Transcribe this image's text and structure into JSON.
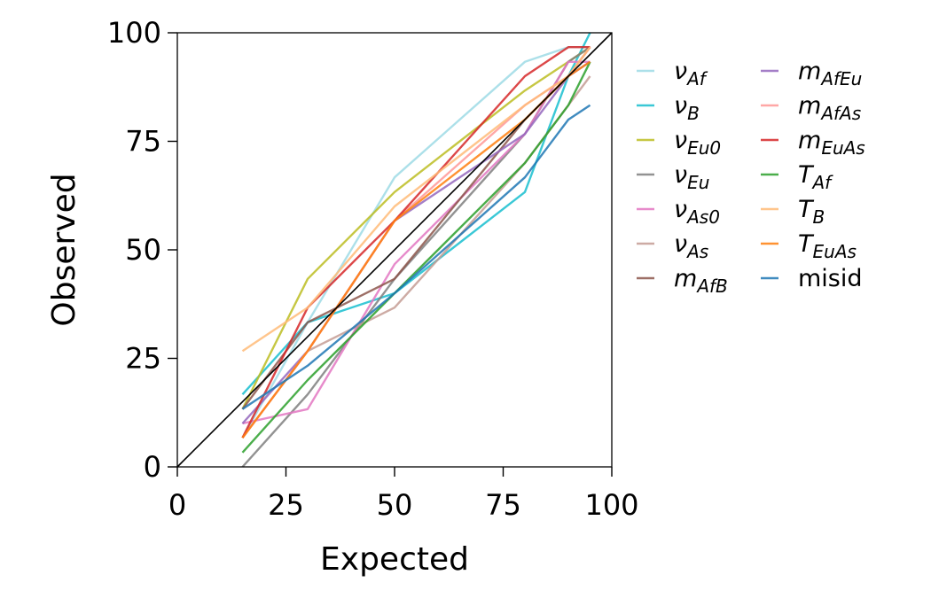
{
  "chart_data": {
    "type": "line",
    "title": "",
    "xlabel": "Expected",
    "ylabel": "Observed",
    "xlim": [
      0,
      100
    ],
    "ylim": [
      0,
      100
    ],
    "x_ticks": [
      "0",
      "25",
      "50",
      "75",
      "100"
    ],
    "y_ticks": [
      "0",
      "25",
      "50",
      "75",
      "100"
    ],
    "grid": false,
    "legend": "outside-right, 2 columns",
    "reference_line": {
      "x": [
        0,
        100
      ],
      "y": [
        0,
        100
      ],
      "color": "#000000"
    },
    "x": [
      15,
      30,
      50,
      80,
      90,
      95
    ],
    "series": [
      {
        "sym": "ν",
        "sub": "Af",
        "color": "#9edae5",
        "values": [
          6.7,
          33.3,
          66.7,
          93.3,
          96.7,
          96.7
        ]
      },
      {
        "sym": "ν",
        "sub": "B",
        "color": "#17becf",
        "values": [
          16.7,
          33.3,
          40.0,
          63.3,
          90.0,
          100.0
        ]
      },
      {
        "sym": "ν",
        "sub": "Eu0",
        "color": "#bcbd22",
        "values": [
          13.3,
          43.3,
          63.3,
          86.7,
          93.3,
          96.7
        ]
      },
      {
        "sym": "ν",
        "sub": "Eu",
        "color": "#7f7f7f",
        "values": [
          0.0,
          16.7,
          43.3,
          76.7,
          93.3,
          96.7
        ]
      },
      {
        "sym": "ν",
        "sub": "As0",
        "color": "#e377c2",
        "values": [
          10.0,
          13.3,
          46.7,
          76.7,
          93.3,
          93.3
        ]
      },
      {
        "sym": "ν",
        "sub": "As",
        "color": "#c49c94",
        "values": [
          6.7,
          26.7,
          36.7,
          70.0,
          83.3,
          90.0
        ]
      },
      {
        "sym": "m",
        "sub": "AfB",
        "color": "#8c564b",
        "values": [
          13.3,
          33.3,
          43.3,
          80.0,
          90.0,
          96.7
        ]
      },
      {
        "sym": "m",
        "sub": "AfEu",
        "color": "#9467bd",
        "values": [
          10.0,
          26.7,
          56.7,
          76.7,
          90.0,
          93.3
        ]
      },
      {
        "sym": "m",
        "sub": "AfAs",
        "color": "#ff9896",
        "values": [
          6.7,
          26.7,
          56.7,
          83.3,
          90.0,
          96.7
        ]
      },
      {
        "sym": "m",
        "sub": "EuAs",
        "color": "#d62728",
        "values": [
          6.7,
          36.7,
          56.7,
          90.0,
          96.7,
          96.7
        ]
      },
      {
        "sym": "T",
        "sub": "Af",
        "color": "#2ca02c",
        "values": [
          3.3,
          20.0,
          40.0,
          70.0,
          83.3,
          93.3
        ]
      },
      {
        "sym": "T",
        "sub": "B",
        "color": "#ffbb78",
        "values": [
          26.7,
          36.7,
          60.0,
          83.3,
          90.0,
          96.7
        ]
      },
      {
        "sym": "T",
        "sub": "EuAs",
        "color": "#ff7f0e",
        "values": [
          6.7,
          26.7,
          56.7,
          80.0,
          90.0,
          93.3
        ]
      },
      {
        "name": "misid",
        "color": "#1f77b4",
        "values": [
          13.3,
          23.3,
          40.0,
          66.7,
          80.0,
          83.3
        ]
      }
    ]
  }
}
